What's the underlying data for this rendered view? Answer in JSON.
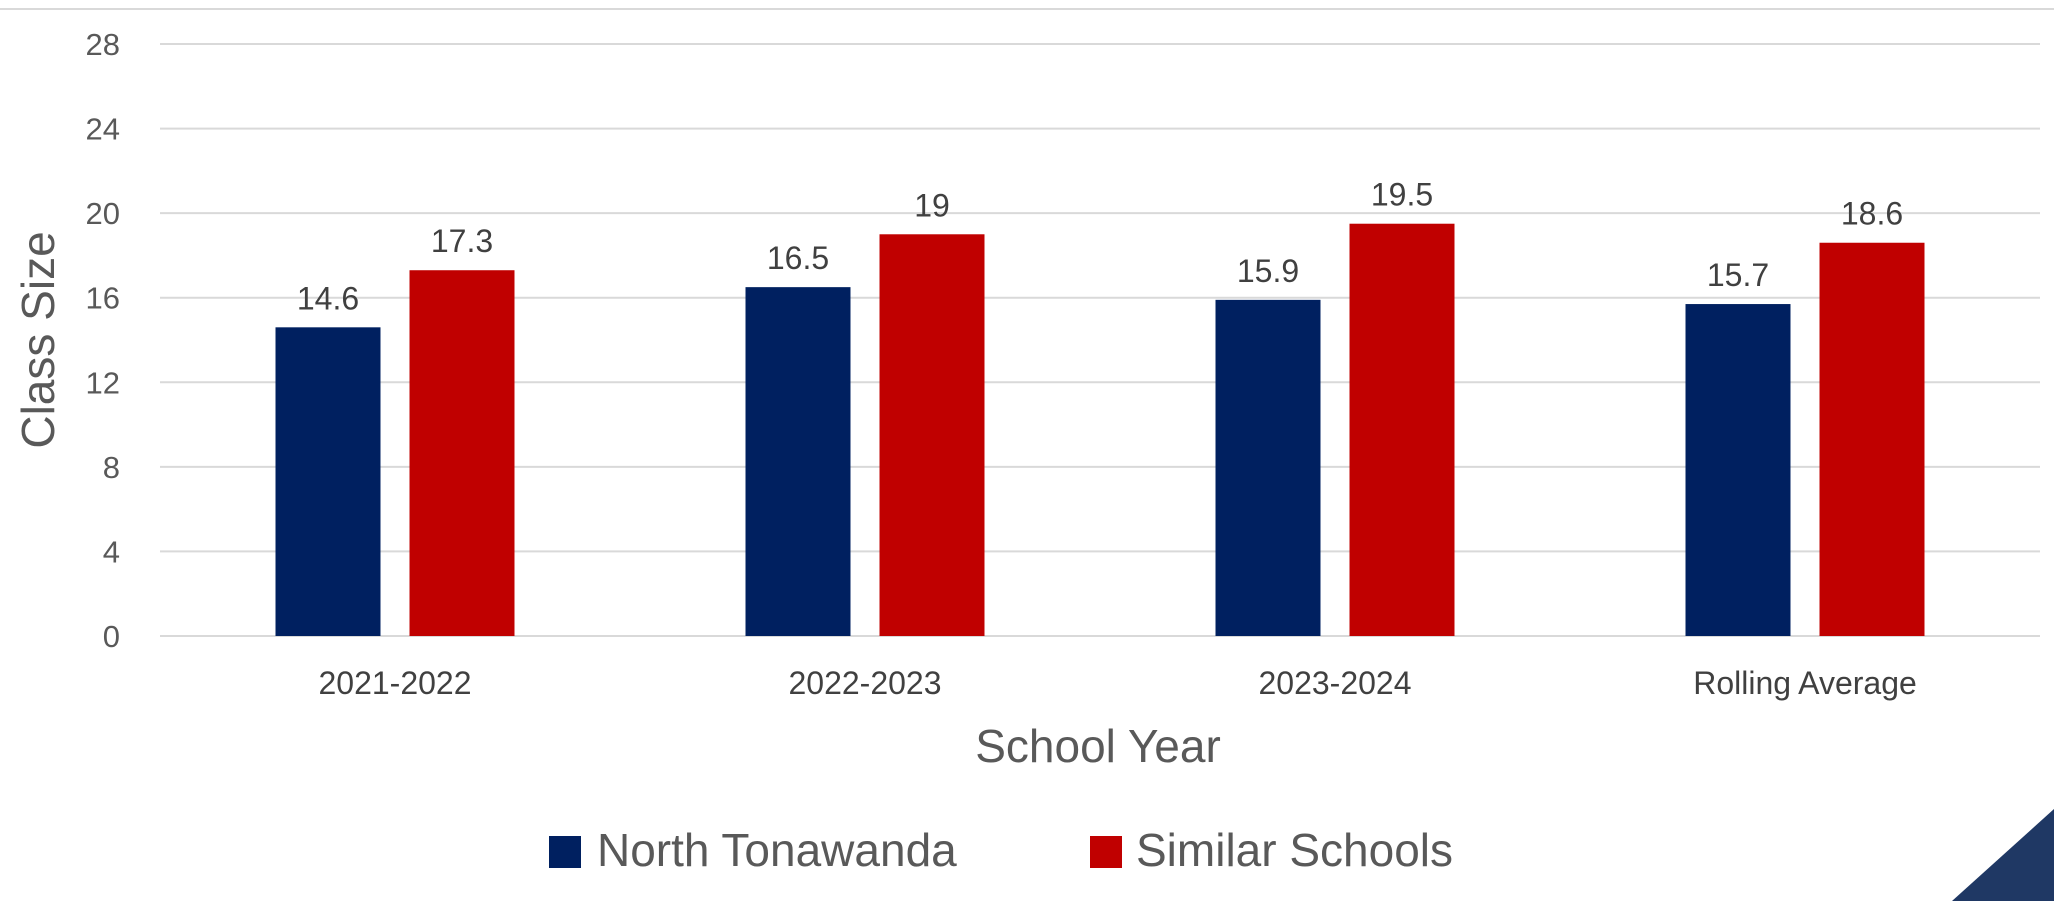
{
  "chart_data": {
    "type": "bar",
    "title": "",
    "xlabel": "School Year",
    "ylabel": "Class Size",
    "ylim": [
      0,
      28
    ],
    "yticks": [
      0,
      4,
      8,
      12,
      16,
      20,
      24,
      28
    ],
    "grid": true,
    "legend_position": "bottom",
    "categories": [
      "2021-2022",
      "2022-2023",
      "2023-2024",
      "Rolling Average"
    ],
    "series": [
      {
        "name": "North Tonawanda",
        "color": "#002060",
        "values": [
          14.6,
          16.5,
          15.9,
          15.7
        ],
        "labels": [
          "14.6",
          "16.5",
          "15.9",
          "15.7"
        ]
      },
      {
        "name": "Similar Schools",
        "color": "#C00000",
        "values": [
          17.3,
          19,
          19.5,
          18.6
        ],
        "labels": [
          "17.3",
          "19",
          "19.5",
          "18.6"
        ]
      }
    ]
  },
  "decoration": {
    "corner_color": "#1F3864"
  }
}
